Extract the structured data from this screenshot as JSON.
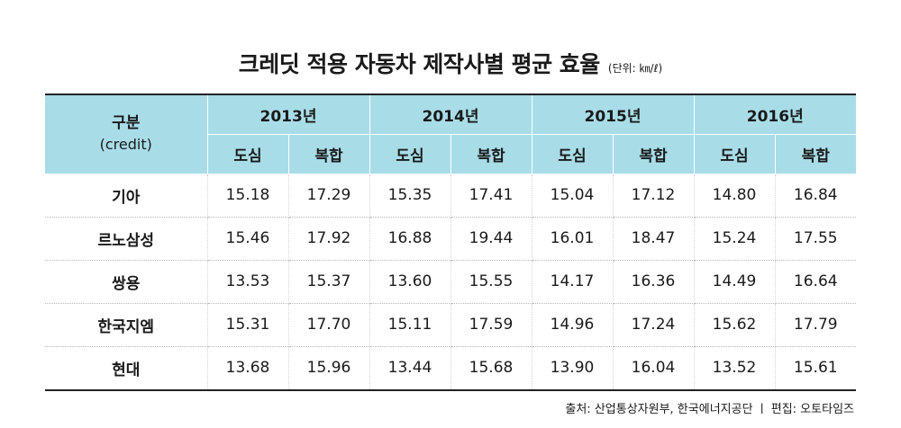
{
  "title": "크레딧 적용 자동차 제작사별 평균 효율",
  "unit": "(단위: ㎞/ℓ)",
  "header": {
    "category": "구분",
    "category_en": "(credit)",
    "years": [
      "2013년",
      "2014년",
      "2015년",
      "2016년"
    ],
    "sub": [
      "도심",
      "복합"
    ]
  },
  "rows": [
    {
      "maker": "기아",
      "values": [
        "15.18",
        "17.29",
        "15.35",
        "17.41",
        "15.04",
        "17.12",
        "14.80",
        "16.84"
      ]
    },
    {
      "maker": "르노삼성",
      "values": [
        "15.46",
        "17.92",
        "16.88",
        "19.44",
        "16.01",
        "18.47",
        "15.24",
        "17.55"
      ]
    },
    {
      "maker": "쌍용",
      "values": [
        "13.53",
        "15.37",
        "13.60",
        "15.55",
        "14.17",
        "16.36",
        "14.49",
        "16.64"
      ]
    },
    {
      "maker": "한국지엠",
      "values": [
        "15.31",
        "17.70",
        "15.11",
        "17.59",
        "14.96",
        "17.24",
        "15.62",
        "17.79"
      ]
    },
    {
      "maker": "현대",
      "values": [
        "13.68",
        "15.96",
        "13.44",
        "15.68",
        "13.90",
        "16.04",
        "13.52",
        "15.61"
      ]
    }
  ],
  "footer": "출처: 산업통상자원부, 한국에너지공단 ㅣ 편집: 오토타임즈",
  "colors": {
    "header_bg": "#a8dde8",
    "rule": "#222222"
  }
}
